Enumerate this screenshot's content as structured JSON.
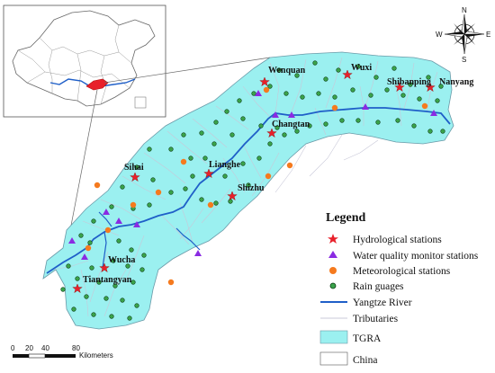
{
  "colors": {
    "tgra_fill": "#9bf0f0",
    "river": "#1f5fc8",
    "tributary": "#c8c8d8",
    "hydro_star": "#e8202a",
    "water_quality": "#8a2be2",
    "meteo": "#f57a1e",
    "rain_fill": "#3aa34a",
    "highlight": "#e8202a"
  },
  "place_labels": [
    {
      "name": "Wenquan"
    },
    {
      "name": "Wuxi"
    },
    {
      "name": "Shibanping"
    },
    {
      "name": "Nanyang"
    },
    {
      "name": "Changtan"
    },
    {
      "name": "Sihai"
    },
    {
      "name": "Lianghe"
    },
    {
      "name": "Shizhu"
    },
    {
      "name": "Wucha"
    },
    {
      "name": "Tiantangyan"
    }
  ],
  "legend": {
    "title": "Legend",
    "items": [
      {
        "label": "Hydrological stations",
        "symbol": "star"
      },
      {
        "label": "Water quality monitor stations",
        "symbol": "triangle"
      },
      {
        "label": "Meteorological stations",
        "symbol": "dot"
      },
      {
        "label": "Rain guages",
        "symbol": "ring"
      },
      {
        "label": "Yangtze River",
        "symbol": "line"
      },
      {
        "label": "Tributaries",
        "symbol": "thin-line"
      },
      {
        "label": "TGRA",
        "symbol": "fill-box"
      },
      {
        "label": "China",
        "symbol": "empty-box"
      }
    ]
  },
  "scale_bar": {
    "ticks": [
      "0",
      "20",
      "40",
      "80"
    ],
    "unit": "Kilometers"
  },
  "north_arrow": {
    "n": "N",
    "s": "S",
    "e": "E",
    "w": "W"
  },
  "inset": {
    "icon": "china-outline-icon"
  }
}
